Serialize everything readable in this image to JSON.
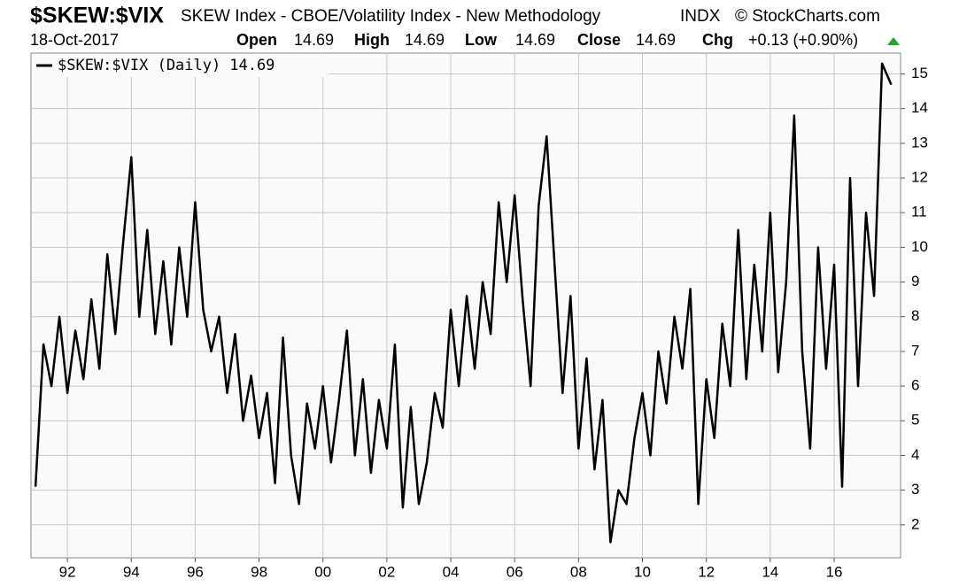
{
  "chart_data": {
    "type": "line",
    "title": "$SKEW:$VIX",
    "subtitle": "SKEW Index - CBOE/Volatility Index - New Methodology",
    "exchange": "INDX",
    "source": "© StockCharts.com",
    "date": "18-Oct-2017",
    "quote": [
      {
        "label": "Open",
        "value": 14.69
      },
      {
        "label": "High",
        "value": 14.69
      },
      {
        "label": "Low",
        "value": 14.69
      },
      {
        "label": "Close",
        "value": 14.69
      },
      {
        "label": "Chg",
        "value": "+0.13 (+0.90%)"
      }
    ],
    "x": [
      1991.0,
      1991.25,
      1991.5,
      1991.75,
      1992.0,
      1992.25,
      1992.5,
      1992.75,
      1993.0,
      1993.25,
      1993.5,
      1993.75,
      1994.0,
      1994.25,
      1994.5,
      1994.75,
      1995.0,
      1995.25,
      1995.5,
      1995.75,
      1996.0,
      1996.25,
      1996.5,
      1996.75,
      1997.0,
      1997.25,
      1997.5,
      1997.75,
      1998.0,
      1998.25,
      1998.5,
      1998.75,
      1999.0,
      1999.25,
      1999.5,
      1999.75,
      2000.0,
      2000.25,
      2000.5,
      2000.75,
      2001.0,
      2001.25,
      2001.5,
      2001.75,
      2002.0,
      2002.25,
      2002.5,
      2002.75,
      2003.0,
      2003.25,
      2003.5,
      2003.75,
      2004.0,
      2004.25,
      2004.5,
      2004.75,
      2005.0,
      2005.25,
      2005.5,
      2005.75,
      2006.0,
      2006.25,
      2006.5,
      2006.75,
      2007.0,
      2007.25,
      2007.5,
      2007.75,
      2008.0,
      2008.25,
      2008.5,
      2008.75,
      2009.0,
      2009.25,
      2009.5,
      2009.75,
      2010.0,
      2010.25,
      2010.5,
      2010.75,
      2011.0,
      2011.25,
      2011.5,
      2011.75,
      2012.0,
      2012.25,
      2012.5,
      2012.75,
      2013.0,
      2013.25,
      2013.5,
      2013.75,
      2014.0,
      2014.25,
      2014.5,
      2014.75,
      2015.0,
      2015.25,
      2015.5,
      2015.75,
      2016.0,
      2016.25,
      2016.5,
      2016.75,
      2017.0,
      2017.25,
      2017.5,
      2017.79
    ],
    "series": [
      {
        "name": "$SKEW:$VIX (Daily)",
        "color": "#000000",
        "values": [
          3.1,
          7.2,
          6.0,
          8.0,
          5.8,
          7.6,
          6.2,
          8.5,
          6.5,
          9.8,
          7.5,
          10.2,
          12.6,
          8.0,
          10.5,
          7.5,
          9.6,
          7.2,
          10.0,
          8.0,
          11.3,
          8.2,
          7.0,
          8.0,
          5.8,
          7.5,
          5.0,
          6.3,
          4.5,
          5.8,
          3.2,
          7.4,
          4.0,
          2.6,
          5.5,
          4.2,
          6.0,
          3.8,
          5.6,
          7.6,
          4.0,
          6.2,
          3.5,
          5.6,
          4.2,
          7.2,
          2.5,
          5.4,
          2.6,
          3.8,
          5.8,
          4.8,
          8.2,
          6.0,
          8.6,
          6.5,
          9.0,
          7.5,
          11.3,
          9.0,
          11.5,
          8.5,
          6.0,
          11.2,
          13.2,
          9.5,
          5.8,
          8.6,
          4.2,
          6.8,
          3.6,
          5.6,
          1.5,
          3.0,
          2.6,
          4.5,
          5.8,
          4.0,
          7.0,
          5.5,
          8.0,
          6.5,
          8.8,
          2.6,
          6.2,
          4.5,
          7.8,
          6.0,
          10.5,
          6.2,
          9.5,
          7.0,
          11.0,
          6.4,
          9.0,
          13.8,
          7.0,
          4.2,
          10.0,
          6.5,
          9.5,
          3.1,
          12.0,
          6.0,
          11.0,
          8.6,
          15.3,
          14.69
        ]
      }
    ],
    "xlim": [
      1990.86,
      2018.08
    ],
    "xticks": [
      {
        "value": 1992,
        "label": "92"
      },
      {
        "value": 1994,
        "label": "94"
      },
      {
        "value": 1996,
        "label": "96"
      },
      {
        "value": 1998,
        "label": "98"
      },
      {
        "value": 2000,
        "label": "00"
      },
      {
        "value": 2002,
        "label": "02"
      },
      {
        "value": 2004,
        "label": "04"
      },
      {
        "value": 2006,
        "label": "06"
      },
      {
        "value": 2008,
        "label": "08"
      },
      {
        "value": 2010,
        "label": "10"
      },
      {
        "value": 2012,
        "label": "12"
      },
      {
        "value": 2014,
        "label": "14"
      },
      {
        "value": 2016,
        "label": "16"
      }
    ],
    "ylim": [
      1.05,
      15.6
    ],
    "yticks": [
      2,
      3,
      4,
      5,
      6,
      7,
      8,
      9,
      10,
      11,
      12,
      13,
      14,
      15
    ],
    "grid": true
  }
}
